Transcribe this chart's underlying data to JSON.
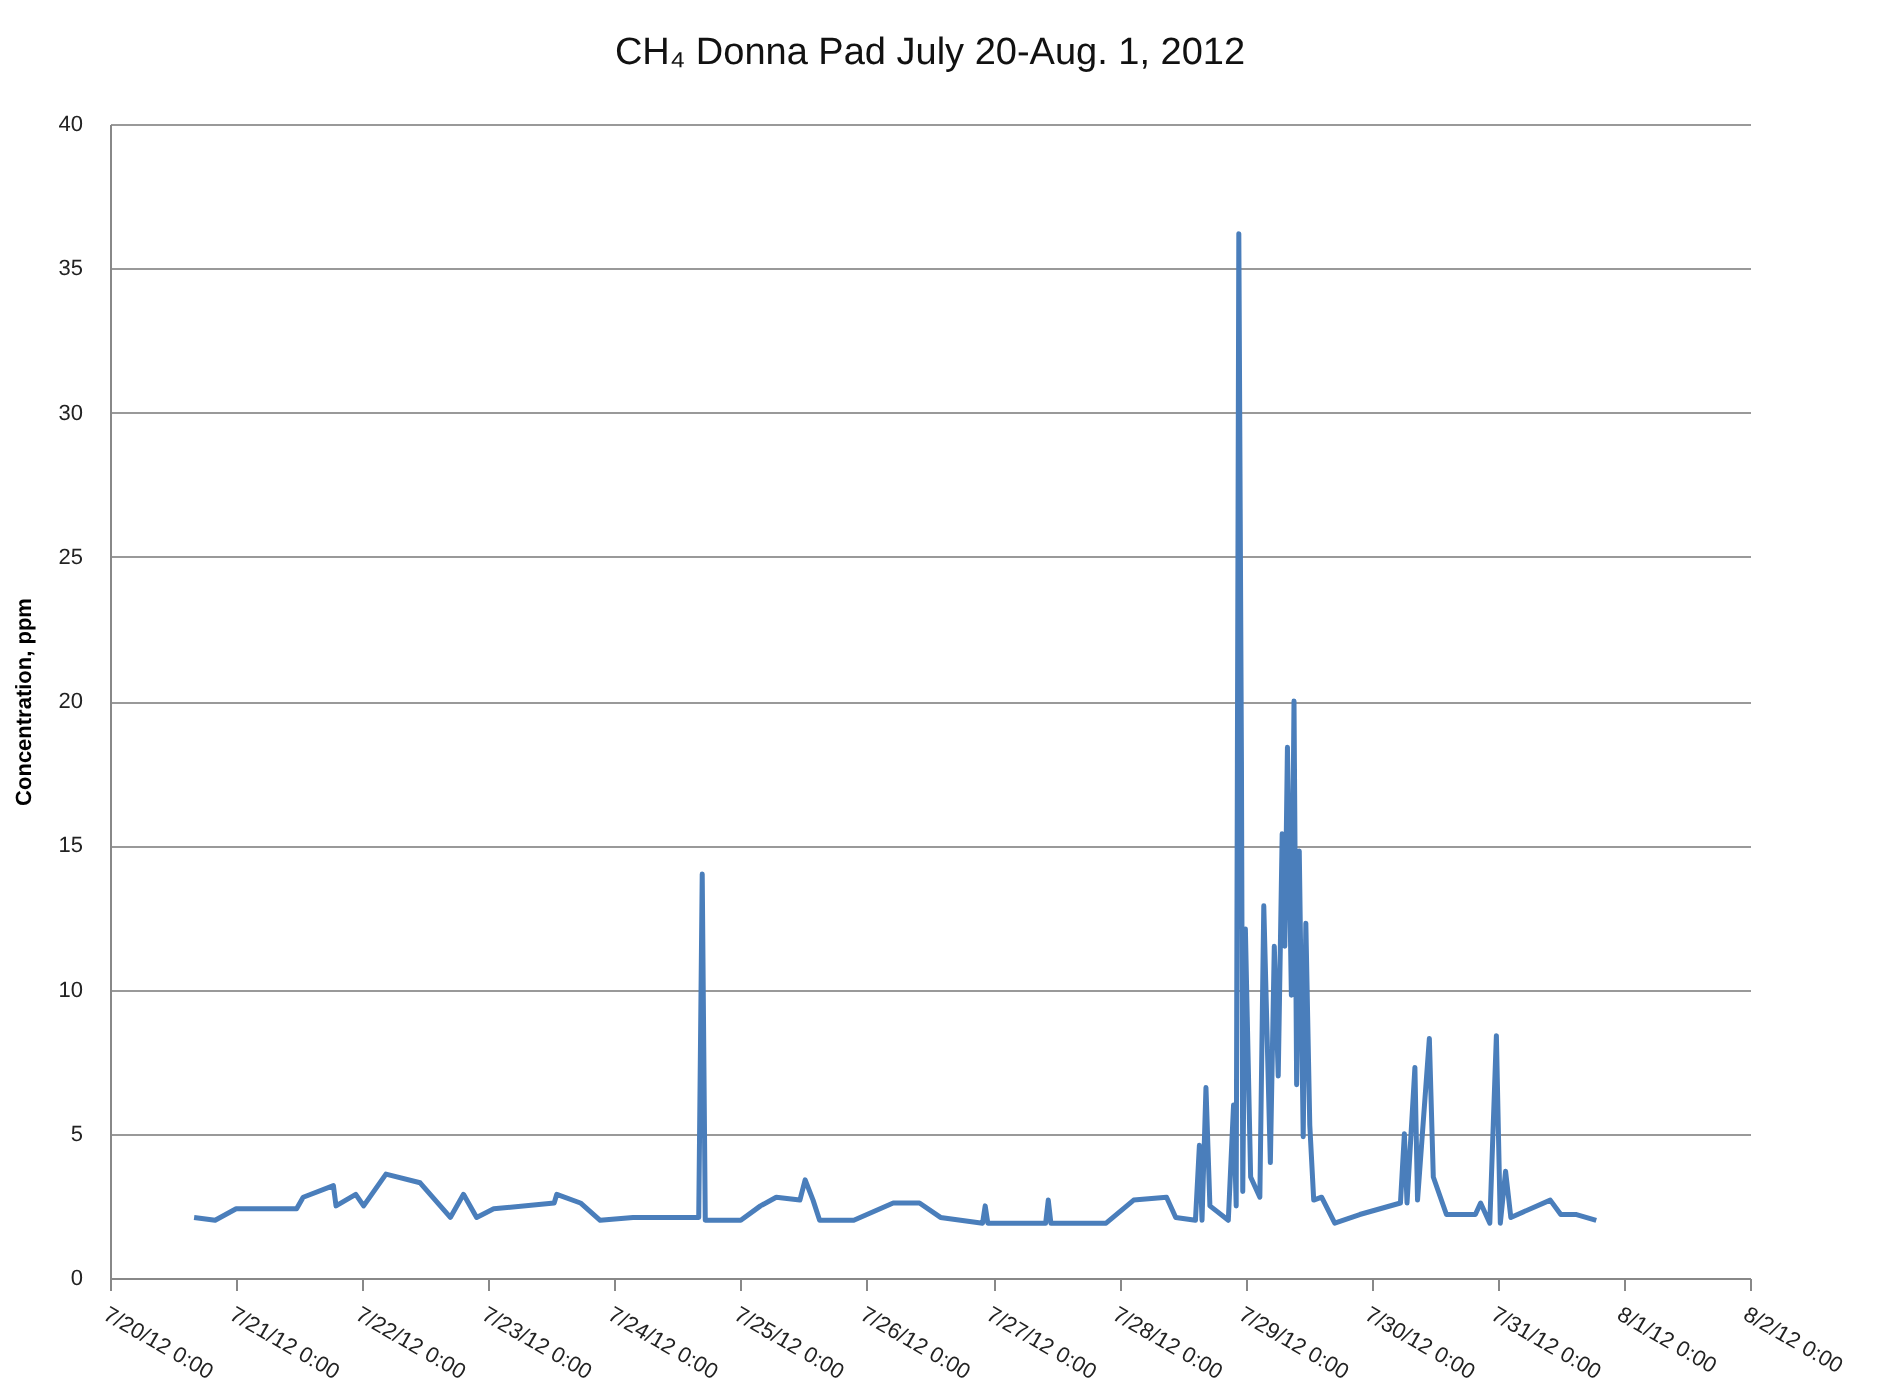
{
  "chart_data": {
    "type": "line",
    "title": "CH₄ Donna Pad July 20-Aug. 1, 2012",
    "ylabel": "Concentration, ppm",
    "xlim": [
      "2012-07-20T00:00",
      "2012-08-02T00:00"
    ],
    "xticks": [
      {
        "value": "2012-07-20T00:00",
        "label": "7/20/12 0:00"
      },
      {
        "value": "2012-07-21T00:00",
        "label": "7/21/12 0:00"
      },
      {
        "value": "2012-07-22T00:00",
        "label": "7/22/12 0:00"
      },
      {
        "value": "2012-07-23T00:00",
        "label": "7/23/12 0:00"
      },
      {
        "value": "2012-07-24T00:00",
        "label": "7/24/12 0:00"
      },
      {
        "value": "2012-07-25T00:00",
        "label": "7/25/12 0:00"
      },
      {
        "value": "2012-07-26T00:00",
        "label": "7/26/12 0:00"
      },
      {
        "value": "2012-07-27T00:00",
        "label": "7/27/12 0:00"
      },
      {
        "value": "2012-07-28T00:00",
        "label": "7/28/12 0:00"
      },
      {
        "value": "2012-07-29T00:00",
        "label": "7/29/12 0:00"
      },
      {
        "value": "2012-07-30T00:00",
        "label": "7/30/12 0:00"
      },
      {
        "value": "2012-07-31T00:00",
        "label": "7/31/12 0:00"
      },
      {
        "value": "2012-08-01T00:00",
        "label": "8/1/12 0:00"
      },
      {
        "value": "2012-08-02T00:00",
        "label": "8/2/12 0:00"
      }
    ],
    "ylim": [
      0,
      40
    ],
    "yticks": [
      0,
      5,
      10,
      15,
      20,
      25,
      30,
      35,
      40
    ],
    "grid": "y",
    "marker": "none",
    "line_style": "solid",
    "x": [
      "2012-07-20T16:00",
      "2012-07-20T20:00",
      "2012-07-21T00:00",
      "2012-07-21T11:30",
      "2012-07-21T12:45",
      "2012-07-21T18:30",
      "2012-07-21T19:00",
      "2012-07-21T22:45",
      "2012-07-22T00:15",
      "2012-07-22T04:30",
      "2012-07-22T11:00",
      "2012-07-22T16:45",
      "2012-07-22T19:15",
      "2012-07-22T21:45",
      "2012-07-23T01:00",
      "2012-07-23T12:30",
      "2012-07-23T13:00",
      "2012-07-23T17:30",
      "2012-07-23T21:15",
      "2012-07-24T03:30",
      "2012-07-24T15:30",
      "2012-07-24T16:00",
      "2012-07-24T16:40",
      "2012-07-24T17:15",
      "2012-07-25T00:00",
      "2012-07-25T03:45",
      "2012-07-25T06:45",
      "2012-07-25T11:15",
      "2012-07-25T12:15",
      "2012-07-25T13:45",
      "2012-07-25T15:00",
      "2012-07-25T21:30",
      "2012-07-26T05:00",
      "2012-07-26T10:00",
      "2012-07-26T14:00",
      "2012-07-26T22:00",
      "2012-07-26T22:30",
      "2012-07-26T23:00",
      "2012-07-27T10:00",
      "2012-07-27T10:30",
      "2012-07-27T11:00",
      "2012-07-27T21:30",
      "2012-07-28T02:45",
      "2012-07-28T09:00",
      "2012-07-28T10:45",
      "2012-07-28T14:30",
      "2012-07-28T15:15",
      "2012-07-28T15:45",
      "2012-07-28T16:30",
      "2012-07-28T17:15",
      "2012-07-28T20:45",
      "2012-07-28T21:45",
      "2012-07-28T22:15",
      "2012-07-28T22:45",
      "2012-07-28T23:15",
      "2012-07-28T23:30",
      "2012-07-29T00:00",
      "2012-07-29T01:00",
      "2012-07-29T02:45",
      "2012-07-29T03:30",
      "2012-07-29T04:45",
      "2012-07-29T05:30",
      "2012-07-29T06:15",
      "2012-07-29T07:00",
      "2012-07-29T07:30",
      "2012-07-29T08:00",
      "2012-07-29T08:45",
      "2012-07-29T09:15",
      "2012-07-29T09:45",
      "2012-07-29T10:15",
      "2012-07-29T11:00",
      "2012-07-29T11:30",
      "2012-07-29T12:15",
      "2012-07-29T13:00",
      "2012-07-29T14:30",
      "2012-07-29T17:00",
      "2012-07-29T21:45",
      "2012-07-30T05:30",
      "2012-07-30T06:15",
      "2012-07-30T06:45",
      "2012-07-30T08:15",
      "2012-07-30T08:45",
      "2012-07-30T11:00",
      "2012-07-30T11:45",
      "2012-07-30T14:15",
      "2012-07-30T19:45",
      "2012-07-30T20:45",
      "2012-07-30T22:30",
      "2012-07-30T23:45",
      "2012-07-31T00:30",
      "2012-07-31T01:30",
      "2012-07-31T02:30",
      "2012-07-31T10:00",
      "2012-07-31T12:00",
      "2012-07-31T15:00",
      "2012-07-31T18:45"
    ],
    "series": [
      {
        "color": "#4a7ebb",
        "values": [
          2.1,
          2.0,
          2.4,
          2.4,
          2.8,
          3.2,
          2.5,
          2.9,
          2.5,
          3.6,
          3.3,
          2.1,
          2.9,
          2.1,
          2.4,
          2.6,
          2.9,
          2.6,
          2.0,
          2.1,
          2.1,
          2.1,
          14.0,
          2.0,
          2.0,
          2.5,
          2.8,
          2.7,
          3.4,
          2.7,
          2.0,
          2.0,
          2.6,
          2.6,
          2.1,
          1.9,
          2.5,
          1.9,
          1.9,
          2.7,
          1.9,
          1.9,
          2.7,
          2.8,
          2.1,
          2.0,
          4.6,
          2.0,
          6.6,
          2.5,
          2.0,
          6.0,
          2.5,
          36.2,
          17.9,
          3.0,
          12.1,
          3.5,
          2.8,
          12.9,
          4.0,
          11.5,
          7.0,
          15.4,
          11.5,
          18.4,
          9.8,
          20.0,
          6.7,
          14.8,
          4.9,
          12.3,
          5.3,
          2.7,
          2.8,
          1.9,
          2.2,
          2.6,
          5.0,
          2.6,
          7.3,
          2.7,
          8.3,
          3.5,
          2.2,
          2.2,
          2.6,
          1.9,
          8.4,
          1.9,
          3.7,
          2.1,
          2.7,
          2.2,
          2.2,
          2.0
        ]
      }
    ]
  }
}
